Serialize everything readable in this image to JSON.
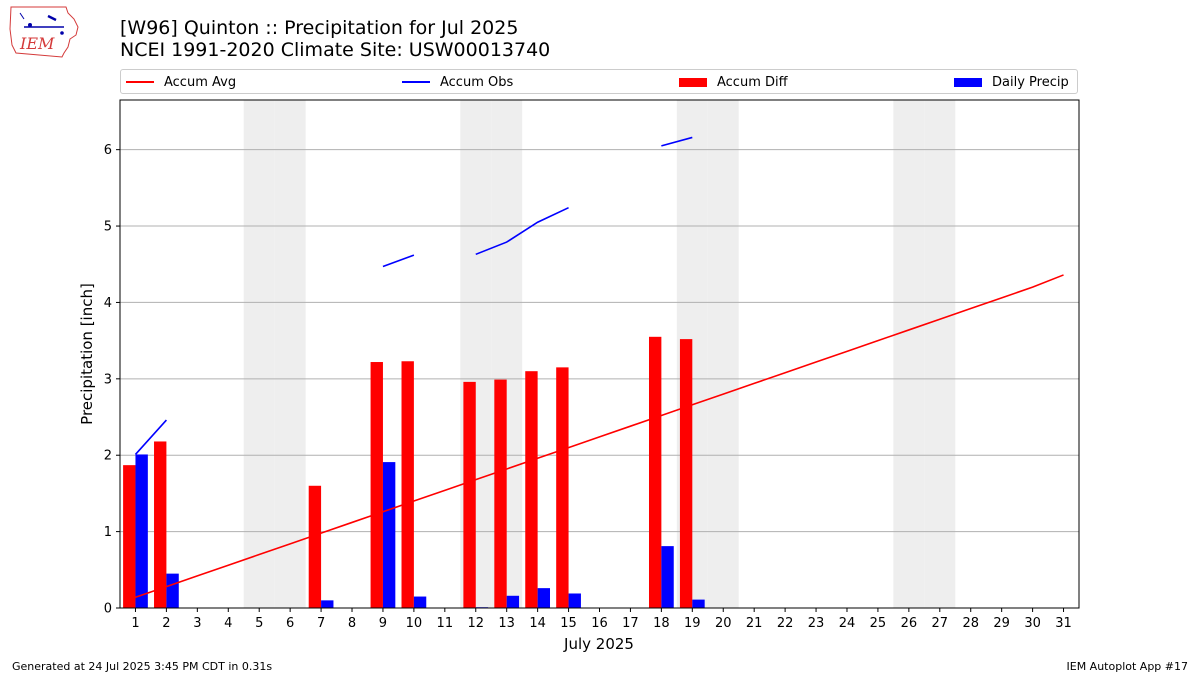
{
  "header": {
    "title_line1": "[W96] Quinton :: Precipitation for Jul 2025",
    "title_line2": "NCEI 1991-2020 Climate Site: USW00013740"
  },
  "logo": {
    "text": "IEM",
    "icon": "iem-iowa-logo-icon"
  },
  "legend": {
    "items": [
      {
        "label": "Accum Avg",
        "kind": "line",
        "color": "#ff0000"
      },
      {
        "label": "Accum Obs",
        "kind": "line",
        "color": "#0000ff"
      },
      {
        "label": "Accum Diff",
        "kind": "bar",
        "color": "#ff0000"
      },
      {
        "label": "Daily Precip",
        "kind": "bar",
        "color": "#0000ff"
      }
    ]
  },
  "footer": {
    "left": "Generated at 24 Jul 2025 3:45 PM CDT in 0.31s",
    "right": "IEM Autoplot App #17"
  },
  "chart_data": {
    "type": "bar",
    "xlabel": "July 2025",
    "ylabel": "Precipitation [inch]",
    "xlim": [
      0.5,
      31.5
    ],
    "ylim": [
      0,
      6.65
    ],
    "yticks": [
      0,
      1,
      2,
      3,
      4,
      5,
      6
    ],
    "grid": "y",
    "legend_position": "top",
    "categories": [
      1,
      2,
      3,
      4,
      5,
      6,
      7,
      8,
      9,
      10,
      11,
      12,
      13,
      14,
      15,
      16,
      17,
      18,
      19,
      20,
      21,
      22,
      23,
      24,
      25,
      26,
      27,
      28,
      29,
      30,
      31
    ],
    "weekend_days": [
      5,
      6,
      12,
      13,
      19,
      20,
      26,
      27
    ],
    "series": [
      {
        "name": "Accum Avg",
        "kind": "line",
        "color": "#ff0000",
        "values": [
          0.14,
          0.28,
          0.42,
          0.56,
          0.7,
          0.84,
          0.98,
          1.12,
          1.26,
          1.4,
          1.54,
          1.68,
          1.82,
          1.96,
          2.1,
          2.24,
          2.38,
          2.52,
          2.66,
          2.8,
          2.94,
          3.08,
          3.22,
          3.36,
          3.5,
          3.64,
          3.78,
          3.92,
          4.06,
          4.2,
          4.36
        ]
      },
      {
        "name": "Accum Obs",
        "kind": "line",
        "color": "#0000ff",
        "values": [
          2.01,
          2.46,
          null,
          null,
          null,
          null,
          null,
          null,
          4.47,
          4.62,
          null,
          4.63,
          4.79,
          5.05,
          5.24,
          null,
          null,
          6.05,
          6.16,
          null,
          null,
          null,
          null,
          null,
          null,
          null,
          null,
          null,
          null,
          null,
          null
        ]
      },
      {
        "name": "Accum Diff",
        "kind": "bar",
        "color": "#ff0000",
        "values": [
          1.87,
          2.18,
          0,
          0,
          0,
          0,
          1.6,
          0,
          3.22,
          3.23,
          0,
          2.96,
          2.99,
          3.1,
          3.15,
          0,
          0,
          3.55,
          3.52,
          0,
          0,
          0,
          0,
          0,
          0,
          0,
          0,
          0,
          0,
          0,
          0
        ]
      },
      {
        "name": "Daily Precip",
        "kind": "bar",
        "color": "#0000ff",
        "values": [
          2.01,
          0.45,
          0,
          0,
          0,
          0,
          0.1,
          0,
          1.91,
          0.15,
          0,
          0.01,
          0.16,
          0.26,
          0.19,
          0,
          0,
          0.81,
          0.11,
          0,
          0,
          0,
          0,
          0,
          0,
          0,
          0,
          0,
          0,
          0,
          0
        ]
      }
    ]
  }
}
